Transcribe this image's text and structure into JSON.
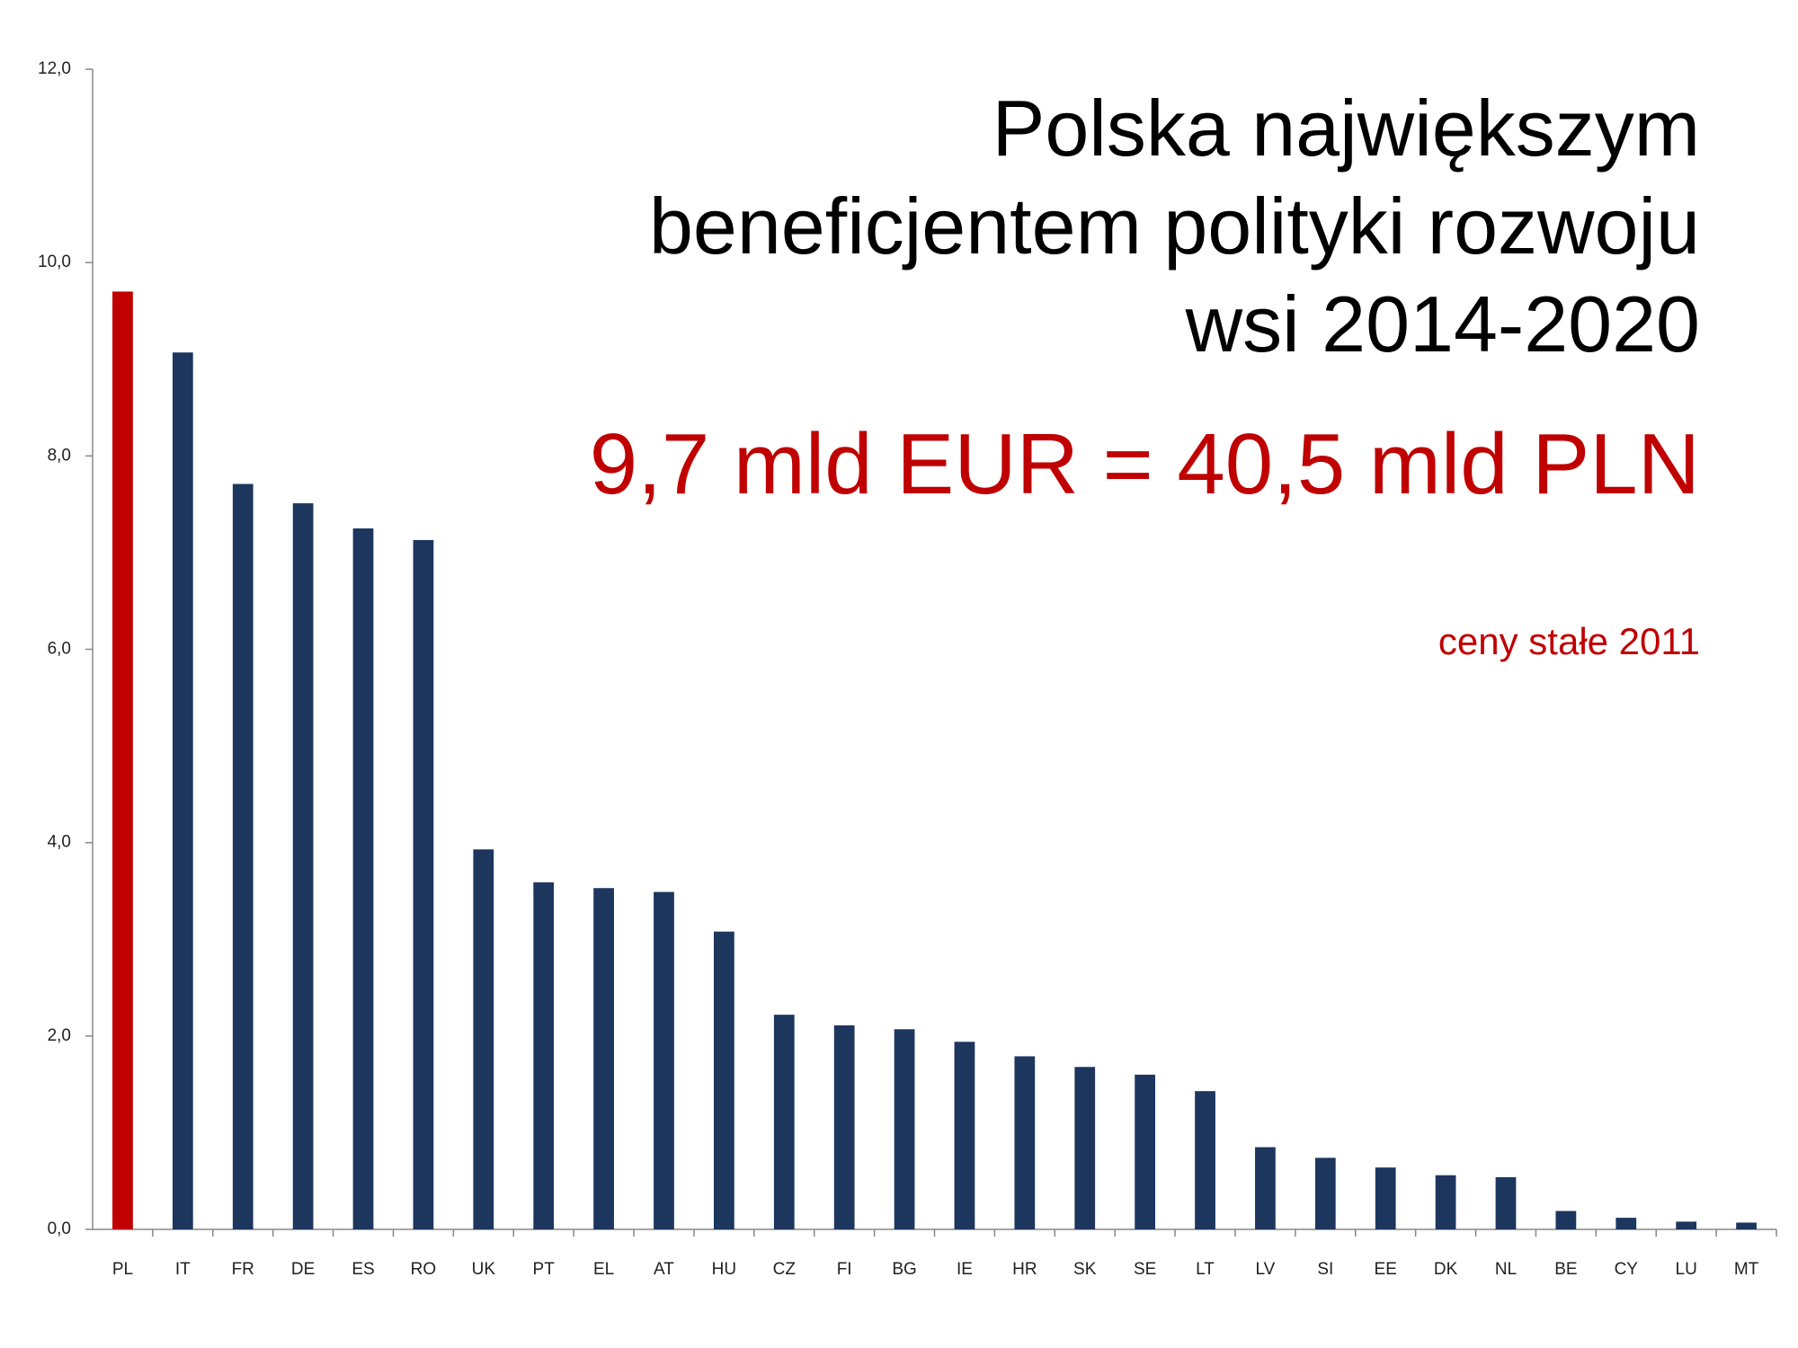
{
  "chart_data": {
    "type": "bar",
    "title": [
      "Polska największym",
      "beneficjentem polityki rozwoju",
      "wsi 2014-2020"
    ],
    "subtitle": "9,7 mld EUR = 40,5 mld PLN",
    "annotation": "ceny stałe 2011",
    "categories": [
      "PL",
      "IT",
      "FR",
      "DE",
      "ES",
      "RO",
      "UK",
      "PT",
      "EL",
      "AT",
      "HU",
      "CZ",
      "FI",
      "BG",
      "IE",
      "HR",
      "SK",
      "SE",
      "LT",
      "LV",
      "SI",
      "EE",
      "DK",
      "NL",
      "BE",
      "CY",
      "LU",
      "MT"
    ],
    "values": [
      9.7,
      9.07,
      7.71,
      7.51,
      7.25,
      7.13,
      3.93,
      3.59,
      3.53,
      3.49,
      3.08,
      2.22,
      2.11,
      2.07,
      1.94,
      1.79,
      1.68,
      1.6,
      1.43,
      0.85,
      0.74,
      0.64,
      0.56,
      0.54,
      0.19,
      0.12,
      0.08,
      0.07
    ],
    "colors": [
      "#c00000",
      "#1c365e",
      "#1c365e",
      "#1c365e",
      "#1c365e",
      "#1c365e",
      "#1c365e",
      "#1c365e",
      "#1c365e",
      "#1c365e",
      "#1c365e",
      "#1c365e",
      "#1c365e",
      "#1c365e",
      "#1c365e",
      "#1c365e",
      "#1c365e",
      "#1c365e",
      "#1c365e",
      "#1c365e",
      "#1c365e",
      "#1c365e",
      "#1c365e",
      "#1c365e",
      "#1c365e",
      "#1c365e",
      "#1c365e",
      "#1c365e"
    ],
    "ylim": [
      0,
      12
    ],
    "yticks": [
      {
        "value": 0,
        "label": "0,0"
      },
      {
        "value": 2,
        "label": "2,0"
      },
      {
        "value": 4,
        "label": "4,0"
      },
      {
        "value": 6,
        "label": "6,0"
      },
      {
        "value": 8,
        "label": "8,0"
      },
      {
        "value": 10,
        "label": "10,0"
      },
      {
        "value": 12,
        "label": "12,0"
      }
    ],
    "grid": false
  }
}
